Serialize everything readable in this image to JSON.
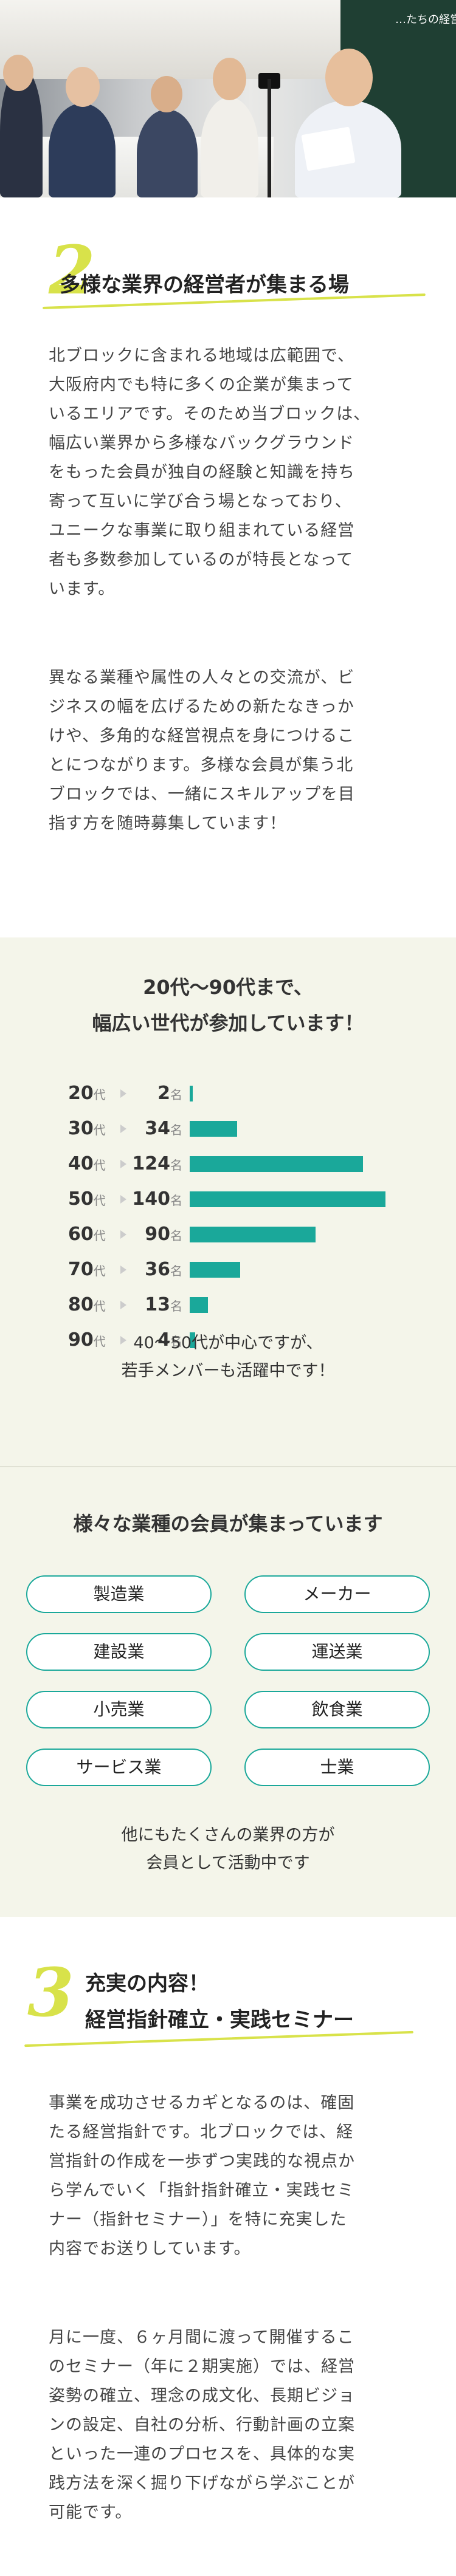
{
  "header_photo": {
    "board_text": "…たちの経営者に"
  },
  "section2": {
    "number": "2",
    "title": "多様な業界の経営者が集まる場",
    "paragraph1": [
      "北ブロックに含まれる地域は広範囲で、",
      "大阪府内でも特に多くの企業が集まって",
      "いるエリアです。そのため当ブロックは、",
      "幅広い業界から多様なバックグラウンド",
      "をもった会員が独自の経験と知識を持ち",
      "寄って互いに学び合う場となっており、",
      "ユニークな事業に取り組まれている経営",
      "者も多数参加しているのが特長となって",
      "います。"
    ],
    "paragraph2": [
      "異なる業種や属性の人々との交流が、ビ",
      "ジネスの幅を広げるための新たなきっか",
      "けや、多角的な経営視点を身につけるこ",
      "とにつながります。多様な会員が集う北",
      "ブロックでは、一緒にスキルアップを目",
      "指す方を随時募集しています！"
    ]
  },
  "ages": {
    "title_line1": "20代〜90代まで、",
    "title_line2": "幅広い世代が参加しています！",
    "bar_color": "#1aa89a",
    "rows": [
      {
        "age": "20",
        "unit": "代",
        "count": "2",
        "count_unit": "名",
        "value": 2
      },
      {
        "age": "30",
        "unit": "代",
        "count": "34",
        "count_unit": "名",
        "value": 34
      },
      {
        "age": "40",
        "unit": "代",
        "count": "124",
        "count_unit": "名",
        "value": 124
      },
      {
        "age": "50",
        "unit": "代",
        "count": "140",
        "count_unit": "名",
        "value": 140
      },
      {
        "age": "60",
        "unit": "代",
        "count": "90",
        "count_unit": "名",
        "value": 90
      },
      {
        "age": "70",
        "unit": "代",
        "count": "36",
        "count_unit": "名",
        "value": 36
      },
      {
        "age": "80",
        "unit": "代",
        "count": "13",
        "count_unit": "名",
        "value": 13
      },
      {
        "age": "90",
        "unit": "代",
        "count": "4",
        "count_unit": "名",
        "value": 4
      }
    ],
    "note_line1": "40〜50代が中心ですが、",
    "note_line2": "若手メンバーも活躍中です！"
  },
  "industries": {
    "title": "様々な業種の会員が集まっています",
    "items": [
      "製造業",
      "メーカー",
      "建設業",
      "運送業",
      "小売業",
      "飲食業",
      "サービス業",
      "士業"
    ],
    "note_line1": "他にもたくさんの業界の方が",
    "note_line2": "会員として活動中です"
  },
  "section3": {
    "number": "3",
    "title_line1": "充実の内容！",
    "title_line2": "経営指針確立・実践セミナー",
    "paragraph1": [
      "事業を成功させるカギとなるのは、確固",
      "たる経営指針です。北ブロックでは、経",
      "営指針の作成を一歩ずつ実践的な視点か",
      "ら学んでいく「指針指針確立・実践セミ",
      "ナー（指針セミナー）」を特に充実した",
      "内容でお送りしています。"
    ],
    "paragraph2": [
      "月に一度、６ヶ月間に渡って開催するこ",
      "のセミナー（年に２期実施）では、経営",
      "姿勢の確立、理念の成文化、長期ビジョ",
      "ンの設定、自社の分析、行動計画の立案",
      "といった一連のプロセスを、具体的な実",
      "践方法を深く掘り下げながら学ぶことが",
      "可能です。"
    ]
  }
}
